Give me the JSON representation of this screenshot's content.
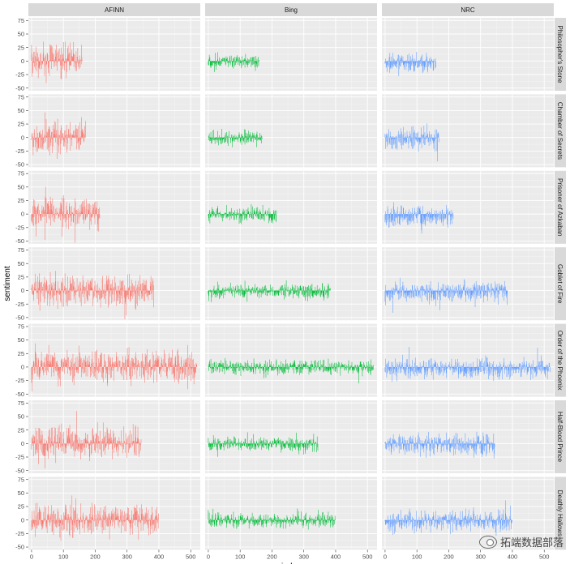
{
  "chart_data": {
    "type": "bar",
    "title": "",
    "xlabel": "index",
    "ylabel": "sentiment",
    "facet_columns": [
      "AFINN",
      "Bing",
      "NRC"
    ],
    "facet_rows": [
      {
        "name": "Philosopher's Stone",
        "length": 160
      },
      {
        "name": "Chamber of Secrets",
        "length": 170
      },
      {
        "name": "Prisoner of Azkaban",
        "length": 215
      },
      {
        "name": "Goblet of Fire",
        "length": 385
      },
      {
        "name": "Order of the Phoenix",
        "length": 520
      },
      {
        "name": "Half-Blood Prince",
        "length": 345
      },
      {
        "name": "Deathly Hallows",
        "length": 400
      }
    ],
    "series_colors": {
      "AFINN": "#F8766D",
      "Bing": "#00BA38",
      "NRC": "#619CFF"
    },
    "series_amplitude": {
      "AFINN": 22,
      "Bing": 10,
      "NRC": 14
    },
    "xlim": [
      -10,
      530
    ],
    "ylim": [
      -55,
      80
    ],
    "x_ticks": [
      0,
      100,
      200,
      300,
      400,
      500
    ],
    "y_ticks": [
      -50,
      -25,
      0,
      25,
      50,
      75
    ],
    "grid": true,
    "legend": "none"
  },
  "watermark": {
    "text": "拓端数据部落"
  }
}
